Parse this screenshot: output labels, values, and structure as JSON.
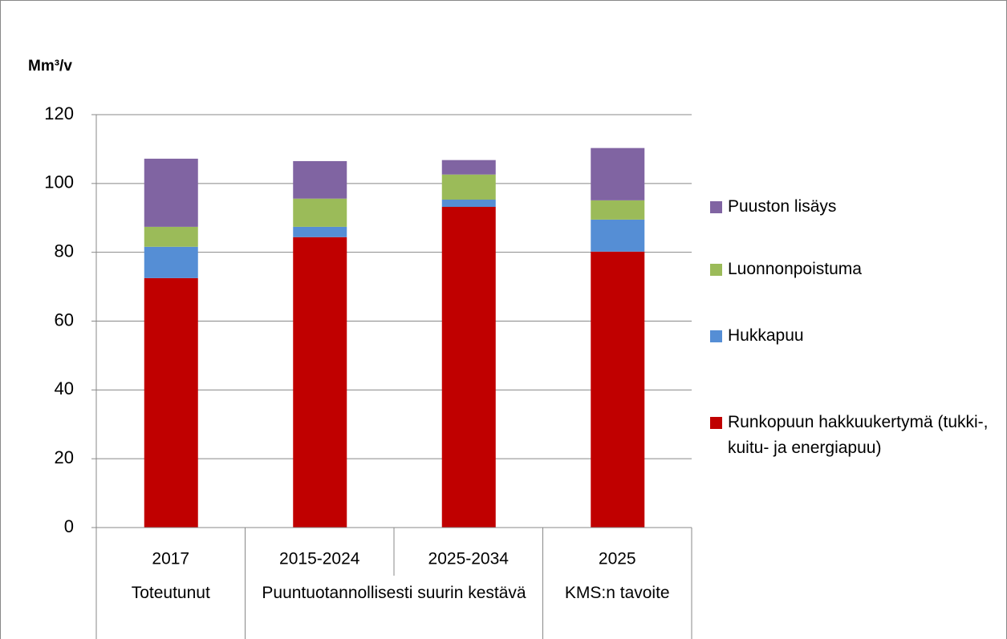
{
  "chart_data": {
    "type": "stacked_bar",
    "y_label": "Mm³/v",
    "categories": [
      "2017",
      "2015-2024",
      "2025-2034",
      "2025"
    ],
    "groups": [
      {
        "name": "Toteutunut",
        "span": 1
      },
      {
        "name": "Puuntuotannollisesti suurin kestävä",
        "span": 2
      },
      {
        "name": "KMS:n tavoite",
        "span": 1
      }
    ],
    "series": [
      {
        "name": "Runkopuun hakkuukertymä (tukki-, kuitu- ja energiapuu)",
        "color": "#c00000",
        "values": [
          72.5,
          84.4,
          93.2,
          80.2
        ]
      },
      {
        "name": "Hukkapuu",
        "color": "#558ed5",
        "values": [
          9.1,
          3.0,
          2.1,
          9.3
        ]
      },
      {
        "name": "Luonnonpoistuma",
        "color": "#9bbb59",
        "values": [
          5.8,
          8.2,
          7.3,
          5.6
        ]
      },
      {
        "name": "Puuston lisäys",
        "color": "#8064a2",
        "values": [
          19.8,
          10.9,
          4.2,
          15.2
        ]
      }
    ],
    "ylim": [
      0,
      120
    ],
    "yticks": [
      0,
      20,
      40,
      60,
      80,
      100,
      120
    ],
    "grid": true,
    "legend": "right"
  }
}
